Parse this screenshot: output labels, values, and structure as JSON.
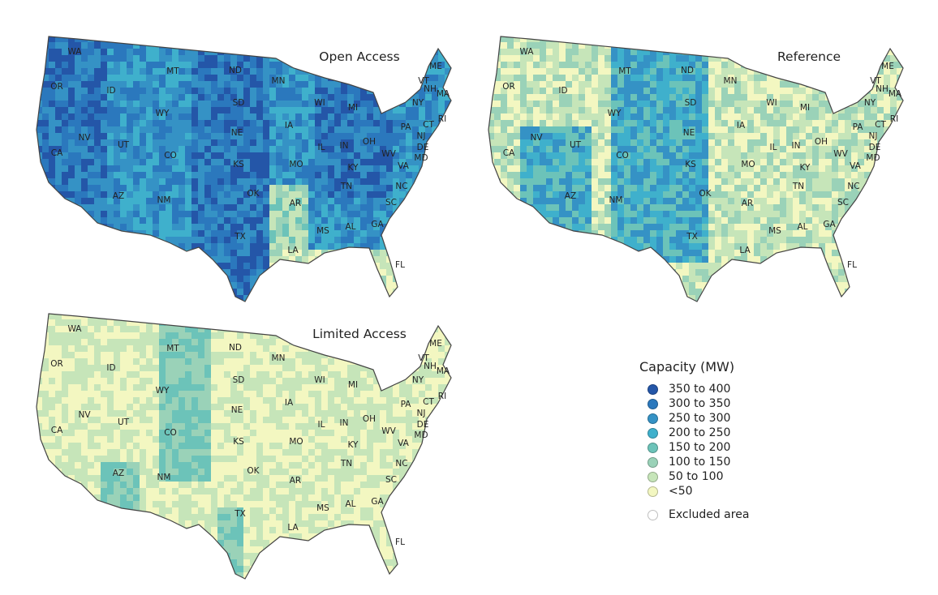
{
  "maps": [
    {
      "title": "Open Access",
      "scenario": "open"
    },
    {
      "title": "Reference",
      "scenario": "reference"
    },
    {
      "title": "Limited Access",
      "scenario": "limited"
    }
  ],
  "state_labels": [
    "WA",
    "OR",
    "CA",
    "NV",
    "ID",
    "MT",
    "WY",
    "UT",
    "CO",
    "AZ",
    "NM",
    "ND",
    "SD",
    "NE",
    "KS",
    "OK",
    "TX",
    "MN",
    "IA",
    "MO",
    "AR",
    "LA",
    "WI",
    "IL",
    "MS",
    "MI",
    "IN",
    "KY",
    "TN",
    "AL",
    "OH",
    "GA",
    "WV",
    "VA",
    "NC",
    "SC",
    "FL",
    "PA",
    "NY",
    "VT",
    "NH",
    "ME",
    "MA",
    "RI",
    "CT",
    "NJ",
    "DE",
    "MD"
  ],
  "legend": {
    "title": "Capacity (MW)",
    "items": [
      {
        "label": "350 to 400",
        "color": "#2456a8"
      },
      {
        "label": "300 to 350",
        "color": "#2b78bd"
      },
      {
        "label": "250 to 300",
        "color": "#3592c5"
      },
      {
        "label": "200 to 250",
        "color": "#3fb0cc"
      },
      {
        "label": "150 to 200",
        "color": "#6cc3b9"
      },
      {
        "label": "100 to 150",
        "color": "#9ad2b8"
      },
      {
        "label": "50 to 100",
        "color": "#c6e5b9"
      },
      {
        "label": "<50",
        "color": "#f3f7c1"
      }
    ],
    "excluded": {
      "label": "Excluded area",
      "color": "#ffffff"
    }
  }
}
